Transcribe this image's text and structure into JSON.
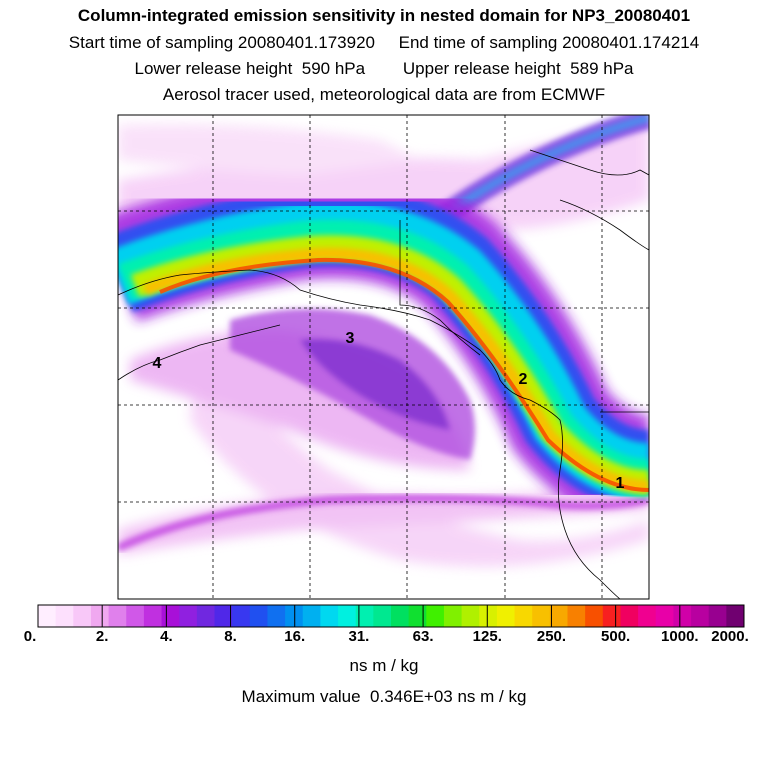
{
  "header": {
    "title": "Column-integrated emission sensitivity in nested domain for NP3_20080401",
    "start_label": "Start time of sampling 20080401.173920",
    "end_label": "End time of sampling 20080401.174214",
    "lower_label": "Lower release height  590 hPa",
    "upper_label": "Upper release height  589 hPa",
    "tracer_line": "Aerosol tracer used, meteorological data are from ECMWF"
  },
  "map": {
    "labels": [
      {
        "id": "1",
        "text": "1"
      },
      {
        "id": "2",
        "text": "2"
      },
      {
        "id": "3",
        "text": "3"
      },
      {
        "id": "4",
        "text": "4"
      }
    ]
  },
  "colorbar": {
    "ticks": [
      "0.",
      "2.",
      "4.",
      "8.",
      "16.",
      "31.",
      "63.",
      "125.",
      "250.",
      "500.",
      "1000.",
      "2000."
    ],
    "colors": [
      "#ffeeff",
      "#fde0fd",
      "#f8c8f8",
      "#f0a8f0",
      "#e080ec",
      "#d058e8",
      "#c030e0",
      "#a810d8",
      "#9020e0",
      "#7028e0",
      "#5028e8",
      "#3838f0",
      "#2050f0",
      "#1070f0",
      "#0090f0",
      "#00b0f0",
      "#00d8f0",
      "#00f0e0",
      "#00f0b0",
      "#00e890",
      "#00e060",
      "#10e030",
      "#40f000",
      "#80f000",
      "#b0f000",
      "#d8f000",
      "#f0f000",
      "#f8d800",
      "#f8c000",
      "#f8a800",
      "#f88000",
      "#f85000",
      "#f82020",
      "#f00060",
      "#f00090",
      "#e800a8",
      "#d000a8",
      "#b800a0",
      "#980090",
      "#700070"
    ],
    "units": "ns m / kg"
  },
  "footer": {
    "max_line": "Maximum value  0.346E+03 ns m / kg"
  }
}
